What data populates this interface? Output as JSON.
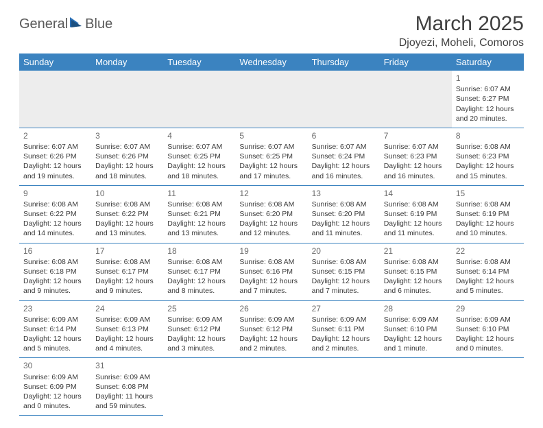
{
  "logo": {
    "text1": "General",
    "text2": "Blue"
  },
  "title": "March 2025",
  "location": "Djoyezi, Moheli, Comoros",
  "colors": {
    "header_bg": "#3b83c0",
    "header_fg": "#ffffff",
    "border": "#3b83c0",
    "empty_bg": "#ededed",
    "text": "#3a3a3a",
    "title_color": "#404040"
  },
  "day_names": [
    "Sunday",
    "Monday",
    "Tuesday",
    "Wednesday",
    "Thursday",
    "Friday",
    "Saturday"
  ],
  "weeks": [
    [
      null,
      null,
      null,
      null,
      null,
      null,
      {
        "n": "1",
        "sr": "6:07 AM",
        "ss": "6:27 PM",
        "dl": "12 hours and 20 minutes."
      }
    ],
    [
      {
        "n": "2",
        "sr": "6:07 AM",
        "ss": "6:26 PM",
        "dl": "12 hours and 19 minutes."
      },
      {
        "n": "3",
        "sr": "6:07 AM",
        "ss": "6:26 PM",
        "dl": "12 hours and 18 minutes."
      },
      {
        "n": "4",
        "sr": "6:07 AM",
        "ss": "6:25 PM",
        "dl": "12 hours and 18 minutes."
      },
      {
        "n": "5",
        "sr": "6:07 AM",
        "ss": "6:25 PM",
        "dl": "12 hours and 17 minutes."
      },
      {
        "n": "6",
        "sr": "6:07 AM",
        "ss": "6:24 PM",
        "dl": "12 hours and 16 minutes."
      },
      {
        "n": "7",
        "sr": "6:07 AM",
        "ss": "6:23 PM",
        "dl": "12 hours and 16 minutes."
      },
      {
        "n": "8",
        "sr": "6:08 AM",
        "ss": "6:23 PM",
        "dl": "12 hours and 15 minutes."
      }
    ],
    [
      {
        "n": "9",
        "sr": "6:08 AM",
        "ss": "6:22 PM",
        "dl": "12 hours and 14 minutes."
      },
      {
        "n": "10",
        "sr": "6:08 AM",
        "ss": "6:22 PM",
        "dl": "12 hours and 13 minutes."
      },
      {
        "n": "11",
        "sr": "6:08 AM",
        "ss": "6:21 PM",
        "dl": "12 hours and 13 minutes."
      },
      {
        "n": "12",
        "sr": "6:08 AM",
        "ss": "6:20 PM",
        "dl": "12 hours and 12 minutes."
      },
      {
        "n": "13",
        "sr": "6:08 AM",
        "ss": "6:20 PM",
        "dl": "12 hours and 11 minutes."
      },
      {
        "n": "14",
        "sr": "6:08 AM",
        "ss": "6:19 PM",
        "dl": "12 hours and 11 minutes."
      },
      {
        "n": "15",
        "sr": "6:08 AM",
        "ss": "6:19 PM",
        "dl": "12 hours and 10 minutes."
      }
    ],
    [
      {
        "n": "16",
        "sr": "6:08 AM",
        "ss": "6:18 PM",
        "dl": "12 hours and 9 minutes."
      },
      {
        "n": "17",
        "sr": "6:08 AM",
        "ss": "6:17 PM",
        "dl": "12 hours and 9 minutes."
      },
      {
        "n": "18",
        "sr": "6:08 AM",
        "ss": "6:17 PM",
        "dl": "12 hours and 8 minutes."
      },
      {
        "n": "19",
        "sr": "6:08 AM",
        "ss": "6:16 PM",
        "dl": "12 hours and 7 minutes."
      },
      {
        "n": "20",
        "sr": "6:08 AM",
        "ss": "6:15 PM",
        "dl": "12 hours and 7 minutes."
      },
      {
        "n": "21",
        "sr": "6:08 AM",
        "ss": "6:15 PM",
        "dl": "12 hours and 6 minutes."
      },
      {
        "n": "22",
        "sr": "6:08 AM",
        "ss": "6:14 PM",
        "dl": "12 hours and 5 minutes."
      }
    ],
    [
      {
        "n": "23",
        "sr": "6:09 AM",
        "ss": "6:14 PM",
        "dl": "12 hours and 5 minutes."
      },
      {
        "n": "24",
        "sr": "6:09 AM",
        "ss": "6:13 PM",
        "dl": "12 hours and 4 minutes."
      },
      {
        "n": "25",
        "sr": "6:09 AM",
        "ss": "6:12 PM",
        "dl": "12 hours and 3 minutes."
      },
      {
        "n": "26",
        "sr": "6:09 AM",
        "ss": "6:12 PM",
        "dl": "12 hours and 2 minutes."
      },
      {
        "n": "27",
        "sr": "6:09 AM",
        "ss": "6:11 PM",
        "dl": "12 hours and 2 minutes."
      },
      {
        "n": "28",
        "sr": "6:09 AM",
        "ss": "6:10 PM",
        "dl": "12 hours and 1 minute."
      },
      {
        "n": "29",
        "sr": "6:09 AM",
        "ss": "6:10 PM",
        "dl": "12 hours and 0 minutes."
      }
    ],
    [
      {
        "n": "30",
        "sr": "6:09 AM",
        "ss": "6:09 PM",
        "dl": "12 hours and 0 minutes."
      },
      {
        "n": "31",
        "sr": "6:09 AM",
        "ss": "6:08 PM",
        "dl": "11 hours and 59 minutes."
      },
      null,
      null,
      null,
      null,
      null
    ]
  ],
  "labels": {
    "sunrise": "Sunrise:",
    "sunset": "Sunset:",
    "daylight": "Daylight:"
  }
}
